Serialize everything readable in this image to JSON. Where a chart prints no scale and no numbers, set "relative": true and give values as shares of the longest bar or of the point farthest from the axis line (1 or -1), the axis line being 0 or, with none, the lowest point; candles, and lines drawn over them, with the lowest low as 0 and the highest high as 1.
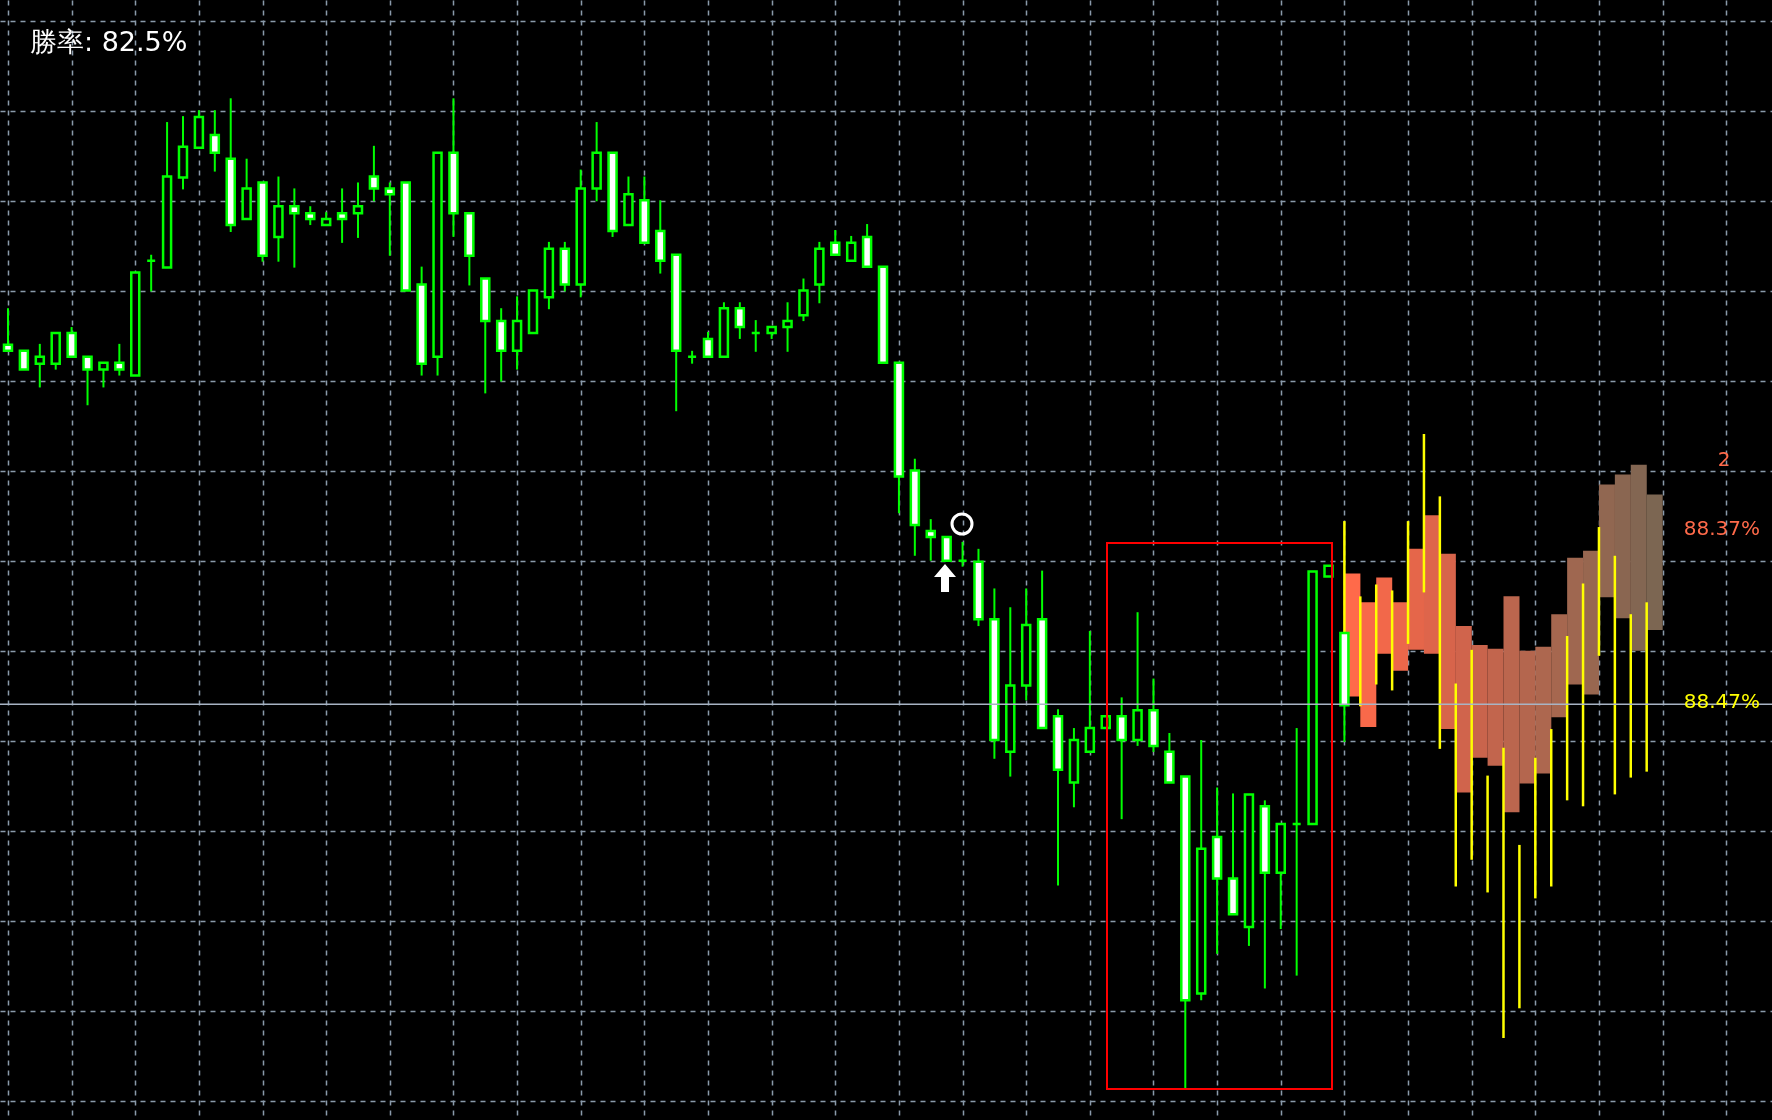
{
  "chart_data": {
    "type": "candlestick",
    "title": "勝率: 82.5%",
    "relative": true,
    "grid": true,
    "categories": [
      null,
      null,
      null,
      null,
      null,
      null,
      null,
      null,
      null,
      null,
      null,
      null,
      null,
      null,
      null,
      null,
      null,
      null,
      null,
      null,
      null,
      null,
      null,
      null,
      null,
      null,
      null,
      null,
      null,
      null,
      null,
      null,
      null,
      null,
      null,
      null,
      null,
      null,
      null,
      null,
      null,
      null,
      null,
      null,
      null,
      null,
      null,
      null,
      null,
      null,
      null,
      null,
      null,
      null,
      null,
      null,
      null,
      null,
      null,
      null,
      null,
      null,
      null,
      null,
      null,
      null,
      null,
      null,
      null,
      null,
      null,
      null,
      null,
      null,
      null,
      null,
      null,
      null,
      null,
      null,
      null,
      null,
      null,
      null,
      null,
      null,
      null,
      null,
      null,
      null,
      null,
      null,
      null,
      null,
      null,
      null,
      null,
      null,
      null,
      null,
      null,
      null,
      null,
      null
    ],
    "series": [
      {
        "color": "#00ff00",
        "ohlc": [
          [
            0.751,
            0.788,
            0.745,
            0.745
          ],
          [
            0.745,
            0.745,
            0.726,
            0.726
          ],
          [
            0.732,
            0.752,
            0.708,
            0.739
          ],
          [
            0.732,
            0.763,
            0.726,
            0.763
          ],
          [
            0.763,
            0.769,
            0.739,
            0.739
          ],
          [
            0.739,
            0.739,
            0.69,
            0.726
          ],
          [
            0.726,
            0.733,
            0.708,
            0.733
          ],
          [
            0.733,
            0.752,
            0.72,
            0.726
          ],
          [
            0.72,
            0.824,
            0.72,
            0.824
          ],
          [
            0.836,
            0.842,
            0.805,
            0.836
          ],
          [
            0.829,
            0.976,
            0.829,
            0.921
          ],
          [
            0.92,
            0.982,
            0.908,
            0.951
          ],
          [
            0.95,
            0.988,
            0.95,
            0.981
          ],
          [
            0.963,
            0.988,
            0.926,
            0.945
          ],
          [
            0.939,
            1,
            0.865,
            0.872
          ],
          [
            0.878,
            0.939,
            0.878,
            0.909
          ],
          [
            0.915,
            0.915,
            0.835,
            0.841
          ],
          [
            0.86,
            0.921,
            0.835,
            0.891
          ],
          [
            0.891,
            0.909,
            0.829,
            0.884
          ],
          [
            0.884,
            0.891,
            0.872,
            0.878
          ],
          [
            0.872,
            0.885,
            0.872,
            0.878
          ],
          [
            0.884,
            0.909,
            0.854,
            0.878
          ],
          [
            0.884,
            0.915,
            0.859,
            0.891
          ],
          [
            0.921,
            0.952,
            0.896,
            0.909
          ],
          [
            0.909,
            0.915,
            0.841,
            0.903
          ],
          [
            0.915,
            0.915,
            0.806,
            0.806
          ],
          [
            0.812,
            0.83,
            0.72,
            0.732
          ],
          [
            0.739,
            0.945,
            0.72,
            0.945
          ],
          [
            0.945,
            1,
            0.86,
            0.884
          ],
          [
            0.884,
            0.884,
            0.811,
            0.841
          ],
          [
            0.818,
            0.818,
            0.702,
            0.775
          ],
          [
            0.775,
            0.788,
            0.714,
            0.745
          ],
          [
            0.745,
            0.8,
            0.726,
            0.775
          ],
          [
            0.763,
            0.806,
            0.763,
            0.806
          ],
          [
            0.799,
            0.855,
            0.787,
            0.848
          ],
          [
            0.848,
            0.855,
            0.805,
            0.812
          ],
          [
            0.812,
            0.928,
            0.799,
            0.909
          ],
          [
            0.909,
            0.976,
            0.896,
            0.945
          ],
          [
            0.945,
            0.945,
            0.86,
            0.866
          ],
          [
            0.872,
            0.921,
            0.872,
            0.903
          ],
          [
            0.897,
            0.921,
            0.854,
            0.854
          ],
          [
            0.866,
            0.897,
            0.823,
            0.836
          ],
          [
            0.842,
            0.842,
            0.684,
            0.745
          ],
          [
            0.739,
            0.745,
            0.732,
            0.739
          ],
          [
            0.757,
            0.764,
            0.739,
            0.739
          ],
          [
            0.739,
            0.794,
            0.739,
            0.788
          ],
          [
            0.788,
            0.794,
            0.757,
            0.769
          ],
          [
            0.763,
            0.776,
            0.744,
            0.763
          ],
          [
            0.763,
            0.769,
            0.757,
            0.769
          ],
          [
            0.769,
            0.794,
            0.744,
            0.775
          ],
          [
            0.781,
            0.818,
            0.775,
            0.806
          ],
          [
            0.812,
            0.855,
            0.793,
            0.848
          ],
          [
            0.854,
            0.867,
            0.842,
            0.842
          ],
          [
            0.836,
            0.861,
            0.836,
            0.854
          ],
          [
            0.86,
            0.873,
            0.83,
            0.83
          ],
          [
            0.83,
            0.83,
            0.733,
            0.733
          ],
          [
            0.733,
            0.733,
            0.581,
            0.618
          ],
          [
            0.624,
            0.636,
            0.538,
            0.569
          ],
          [
            0.563,
            0.575,
            0.533,
            0.557
          ],
          [
            0.557,
            0.557,
            0.533,
            0.533
          ],
          [
            0.533,
            0.552,
            0.527,
            0.533
          ],
          [
            0.532,
            0.545,
            0.467,
            0.474
          ],
          [
            0.474,
            0.505,
            0.333,
            0.352
          ],
          [
            0.34,
            0.486,
            0.315,
            0.407
          ],
          [
            0.407,
            0.505,
            0.392,
            0.468
          ],
          [
            0.474,
            0.523,
            0.364,
            0.364
          ],
          [
            0.376,
            0.383,
            0.205,
            0.322
          ],
          [
            0.309,
            0.364,
            0.284,
            0.352
          ],
          [
            0.34,
            0.462,
            0.34,
            0.364
          ],
          [
            0.364,
            0.376,
            0.364,
            0.376
          ],
          [
            0.376,
            0.395,
            0.272,
            0.352
          ],
          [
            0.352,
            0.481,
            0.346,
            0.382
          ],
          [
            0.382,
            0.414,
            0.34,
            0.346
          ],
          [
            0.34,
            0.359,
            0.309,
            0.309
          ],
          [
            0.315,
            0.315,
            0,
            0.089
          ],
          [
            0.096,
            0.352,
            0.089,
            0.242
          ],
          [
            0.254,
            0.304,
            0.136,
            0.212
          ],
          [
            0.212,
            0.298,
            0.176,
            0.176
          ],
          [
            0.163,
            0.297,
            0.144,
            0.297
          ],
          [
            0.285,
            0.291,
            0.101,
            0.218
          ],
          [
            0.218,
            0.267,
            0.161,
            0.267
          ],
          [
            0.267,
            0.364,
            0.114,
            0.267
          ],
          [
            0.267,
            0.522,
            0.267,
            0.522
          ],
          [
            0.517,
            0.528,
            0.517,
            0.528
          ],
          [
            0.46,
            0.46,
            0.35,
            0.387
          ],
          null,
          null,
          null,
          null,
          null,
          null,
          null,
          null,
          null,
          null,
          null,
          null,
          null,
          null,
          null,
          null,
          null,
          null,
          null
        ]
      },
      {
        "type": "bar",
        "colors": [
          null,
          null,
          null,
          null,
          null,
          null,
          null,
          null,
          null,
          null,
          null,
          null,
          null,
          null,
          null,
          null,
          null,
          null,
          null,
          null,
          null,
          null,
          null,
          null,
          null,
          null,
          null,
          null,
          null,
          null,
          null,
          null,
          null,
          null,
          null,
          null,
          null,
          null,
          null,
          null,
          null,
          null,
          null,
          null,
          null,
          null,
          null,
          null,
          null,
          null,
          null,
          null,
          null,
          null,
          null,
          null,
          null,
          null,
          null,
          null,
          null,
          null,
          null,
          null,
          null,
          null,
          null,
          null,
          null,
          null,
          null,
          null,
          null,
          null,
          null,
          null,
          null,
          null,
          null,
          null,
          null,
          null,
          null,
          null,
          "#ff6a4a",
          "#f8694a",
          "#f2684a",
          "#ec674a",
          "#e5664a",
          "#de654b",
          "#d7644b",
          "#d0644c",
          "#c9644c",
          "#c2654d",
          "#bb664e",
          "#b4664e",
          "#ad674f",
          "#a6674f",
          "#9f6750",
          "#986750",
          "#916751",
          "#8a6651",
          "#836652",
          "#7c6652"
        ],
        "base": [
          null,
          null,
          null,
          null,
          null,
          null,
          null,
          null,
          null,
          null,
          null,
          null,
          null,
          null,
          null,
          null,
          null,
          null,
          null,
          null,
          null,
          null,
          null,
          null,
          null,
          null,
          null,
          null,
          null,
          null,
          null,
          null,
          null,
          null,
          null,
          null,
          null,
          null,
          null,
          null,
          null,
          null,
          null,
          null,
          null,
          null,
          null,
          null,
          null,
          null,
          null,
          null,
          null,
          null,
          null,
          null,
          null,
          null,
          null,
          null,
          null,
          null,
          null,
          null,
          null,
          null,
          null,
          null,
          null,
          null,
          null,
          null,
          null,
          null,
          null,
          null,
          null,
          null,
          null,
          null,
          null,
          null,
          null,
          null,
          0.396,
          0.365,
          0.439,
          0.422,
          0.443,
          0.439,
          0.363,
          0.299,
          0.334,
          0.326,
          0.279,
          0.308,
          0.318,
          0.375,
          0.408,
          0.398,
          0.496,
          0.475,
          0.442,
          0.463
        ],
        "values": [
          null,
          null,
          null,
          null,
          null,
          null,
          null,
          null,
          null,
          null,
          null,
          null,
          null,
          null,
          null,
          null,
          null,
          null,
          null,
          null,
          null,
          null,
          null,
          null,
          null,
          null,
          null,
          null,
          null,
          null,
          null,
          null,
          null,
          null,
          null,
          null,
          null,
          null,
          null,
          null,
          null,
          null,
          null,
          null,
          null,
          null,
          null,
          null,
          null,
          null,
          null,
          null,
          null,
          null,
          null,
          null,
          null,
          null,
          null,
          null,
          null,
          null,
          null,
          null,
          null,
          null,
          null,
          null,
          null,
          null,
          null,
          null,
          null,
          null,
          null,
          null,
          null,
          null,
          null,
          null,
          null,
          null,
          null,
          null,
          0.124,
          0.126,
          0.077,
          0.069,
          0.102,
          0.14,
          0.177,
          0.168,
          0.114,
          0.118,
          0.218,
          0.134,
          0.128,
          0.104,
          0.128,
          0.145,
          0.114,
          0.145,
          0.188,
          0.137
        ]
      },
      {
        "type": "bar",
        "color": "#ffff00",
        "base": [
          null,
          null,
          null,
          null,
          null,
          null,
          null,
          null,
          null,
          null,
          null,
          null,
          null,
          null,
          null,
          null,
          null,
          null,
          null,
          null,
          null,
          null,
          null,
          null,
          null,
          null,
          null,
          null,
          null,
          null,
          null,
          null,
          null,
          null,
          null,
          null,
          null,
          null,
          null,
          null,
          null,
          null,
          null,
          null,
          null,
          null,
          null,
          null,
          null,
          null,
          null,
          null,
          null,
          null,
          null,
          null,
          null,
          null,
          null,
          null,
          null,
          null,
          null,
          null,
          null,
          null,
          null,
          null,
          null,
          null,
          null,
          null,
          null,
          null,
          null,
          null,
          null,
          null,
          null,
          null,
          null,
          null,
          null,
          null,
          0.387,
          0.386,
          0.408,
          0.402,
          0.449,
          0.501,
          0.343,
          0.204,
          0.231,
          0.198,
          0.051,
          0.081,
          0.192,
          0.204,
          0.291,
          0.285,
          0.437,
          0.297,
          0.314,
          0.32
        ],
        "values": [
          null,
          null,
          null,
          null,
          null,
          null,
          null,
          null,
          null,
          null,
          null,
          null,
          null,
          null,
          null,
          null,
          null,
          null,
          null,
          null,
          null,
          null,
          null,
          null,
          null,
          null,
          null,
          null,
          null,
          null,
          null,
          null,
          null,
          null,
          null,
          null,
          null,
          null,
          null,
          null,
          null,
          null,
          null,
          null,
          null,
          null,
          null,
          null,
          null,
          null,
          null,
          null,
          null,
          null,
          null,
          null,
          null,
          null,
          null,
          null,
          null,
          null,
          null,
          null,
          null,
          null,
          null,
          null,
          null,
          null,
          null,
          null,
          null,
          null,
          null,
          null,
          null,
          null,
          null,
          null,
          null,
          null,
          null,
          null,
          0.186,
          0.111,
          0.101,
          0.101,
          0.124,
          0.16,
          0.255,
          0.205,
          0.212,
          0.118,
          0.293,
          0.165,
          0.142,
          0.159,
          0.166,
          0.225,
          0.13,
          0.241,
          0.165,
          0.171
        ]
      }
    ],
    "ref_lines": [
      {
        "axis": "y",
        "value": 0.388,
        "color": "#a8b4c4"
      }
    ],
    "annotations": [
      "2",
      "88.37%",
      "88.47%"
    ]
  }
}
